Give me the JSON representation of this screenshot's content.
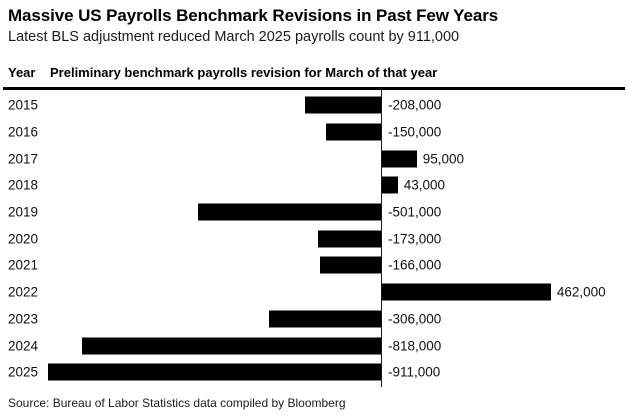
{
  "meta": {
    "background_color": "#ffffff",
    "bar_color": "#000000",
    "text_color": "#1a1a1a"
  },
  "header": {
    "title": "Massive US Payrolls Benchmark Revisions in Past Few Years",
    "subtitle": "Latest BLS adjustment reduced March 2025 payrolls count by 911,000"
  },
  "table_header": {
    "year_label": "Year",
    "value_label": "Preliminary benchmark payrolls revision for March of that year"
  },
  "chart_data": {
    "type": "bar",
    "orientation": "horizontal",
    "categories": [
      "2015",
      "2016",
      "2017",
      "2018",
      "2019",
      "2020",
      "2021",
      "2022",
      "2023",
      "2024",
      "2025"
    ],
    "values": [
      -208000,
      -150000,
      95000,
      43000,
      -501000,
      -173000,
      -166000,
      462000,
      -306000,
      -818000,
      -911000
    ],
    "value_labels": [
      "-208,000",
      "-150,000",
      "95,000",
      "43,000",
      "-501,000",
      "-173,000",
      "-166,000",
      "462,000",
      "-306,000",
      "-818,000",
      "-911,000"
    ],
    "bar_color": "#000000",
    "xlim": [
      -911000,
      462000
    ],
    "zero_axis": true,
    "grid": false,
    "legend": "none",
    "title": "Massive US Payrolls Benchmark Revisions in Past Few Years",
    "xlabel": "Preliminary benchmark payrolls revision for March of that year",
    "ylabel": "Year"
  },
  "footer": {
    "source": "Source: Bureau of Labor Statistics data compiled by Bloomberg"
  }
}
